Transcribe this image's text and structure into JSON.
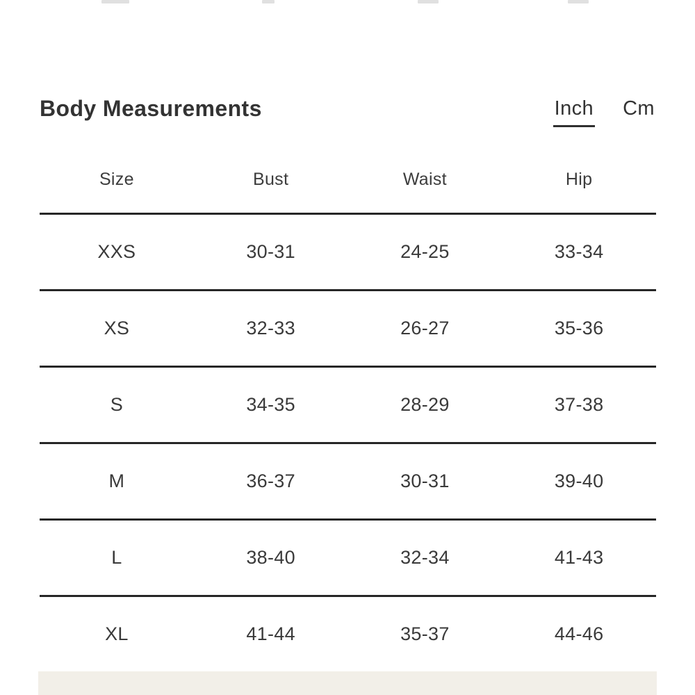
{
  "colors": {
    "text": "#3a3a3a",
    "title": "#333333",
    "separator_line": "#262626",
    "footer_band": "#f2efe8"
  },
  "section": {
    "title": "Body Measurements",
    "units": [
      {
        "label": "Inch",
        "active": true
      },
      {
        "label": "Cm",
        "active": false
      }
    ],
    "table": {
      "columns": [
        {
          "label": "Size"
        },
        {
          "label": "Bust"
        },
        {
          "label": "Waist"
        },
        {
          "label": "Hip"
        }
      ],
      "rows": [
        {
          "cells": [
            "XXS",
            "30-31",
            "24-25",
            "33-34"
          ]
        },
        {
          "cells": [
            "XS",
            "32-33",
            "26-27",
            "35-36"
          ]
        },
        {
          "cells": [
            "S",
            "34-35",
            "28-29",
            "37-38"
          ]
        },
        {
          "cells": [
            "M",
            "36-37",
            "30-31",
            "39-40"
          ]
        },
        {
          "cells": [
            "L",
            "38-40",
            "32-34",
            "41-43"
          ]
        },
        {
          "cells": [
            "XL",
            "41-44",
            "35-37",
            "44-46"
          ]
        }
      ]
    }
  }
}
